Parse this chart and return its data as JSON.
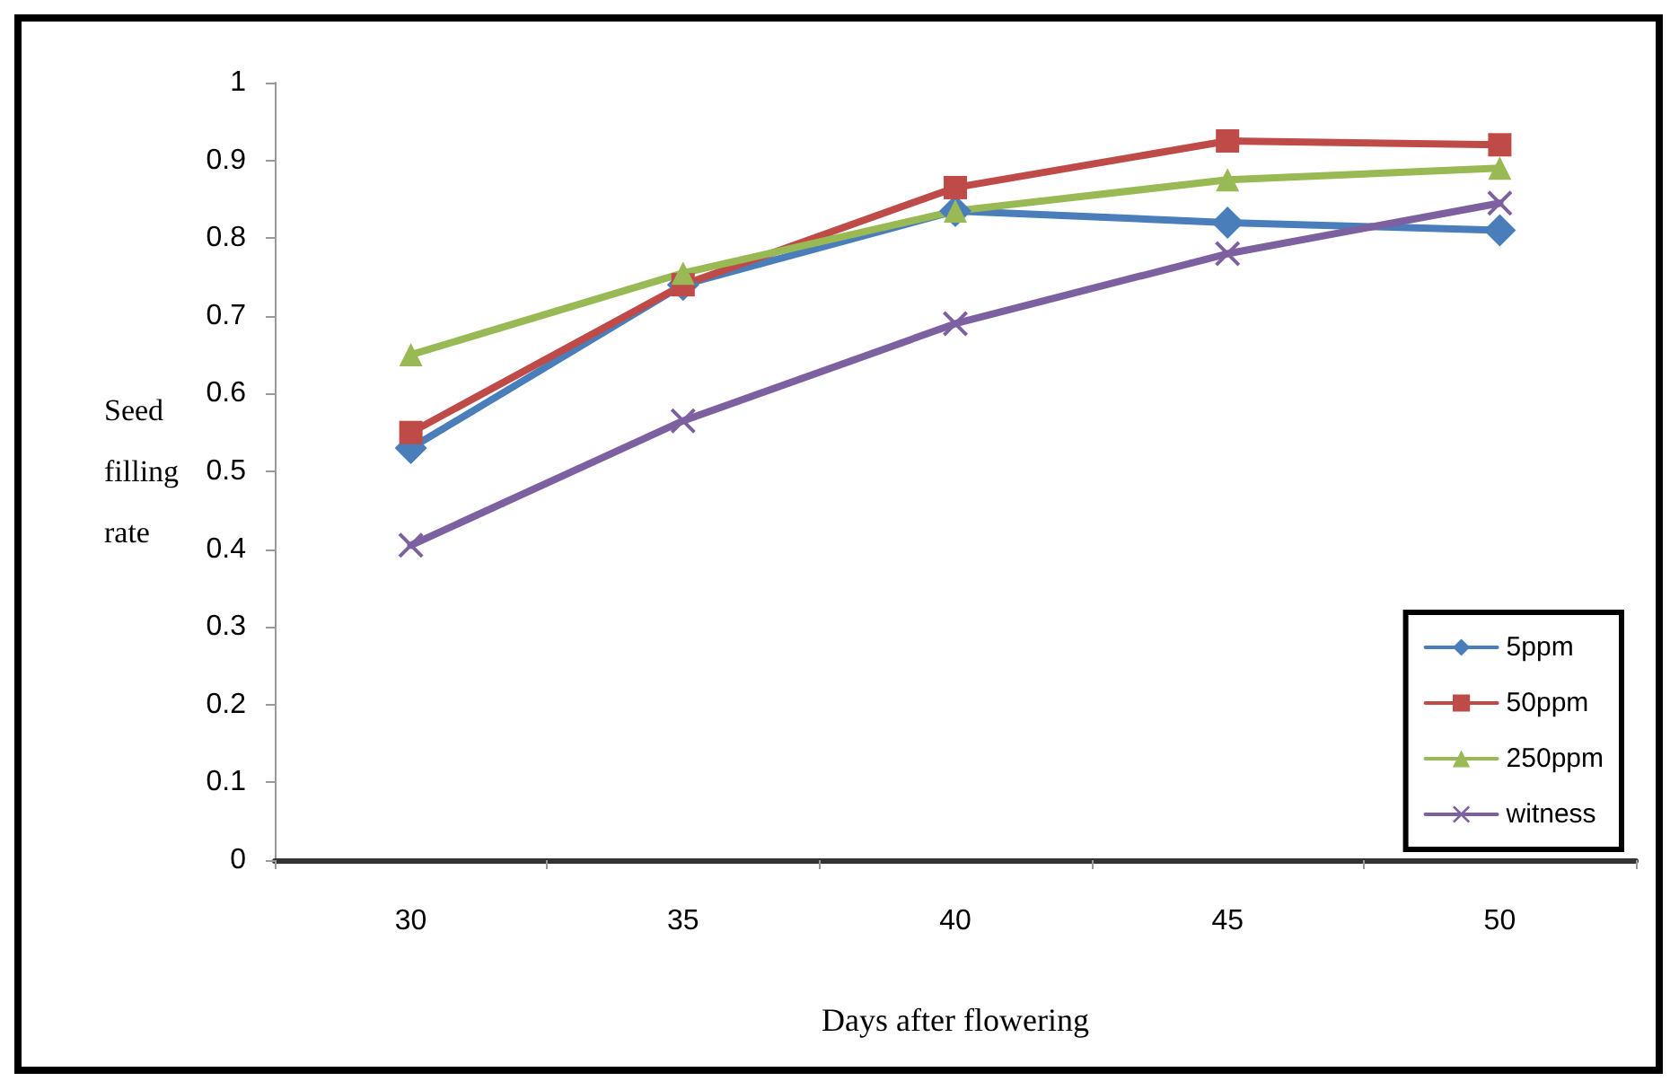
{
  "chart_data": {
    "type": "line",
    "xlabel": "Days after flowering",
    "ylabel": "Seed filling rate",
    "categories": [
      "30",
      "35",
      "40",
      "45",
      "50"
    ],
    "series": [
      {
        "name": "5ppm",
        "color": "#4a7ebb",
        "marker": "diamond",
        "values": [
          0.53,
          0.74,
          0.835,
          0.82,
          0.81
        ]
      },
      {
        "name": "50ppm",
        "color": "#be4b48",
        "marker": "square",
        "values": [
          0.55,
          0.74,
          0.865,
          0.925,
          0.92
        ]
      },
      {
        "name": "250ppm",
        "color": "#98b954",
        "marker": "triangle",
        "values": [
          0.65,
          0.755,
          0.835,
          0.875,
          0.89
        ]
      },
      {
        "name": "witness",
        "color": "#7d60a0",
        "marker": "cross",
        "values": [
          0.405,
          0.565,
          0.69,
          0.78,
          0.845
        ]
      }
    ],
    "ylim": [
      0,
      1
    ],
    "yticks": [
      0,
      0.1,
      0.2,
      0.3,
      0.4,
      0.5,
      0.6,
      0.7,
      0.8,
      0.9,
      1
    ],
    "grid": false,
    "legend": "bottom right",
    "line_style": "solid"
  }
}
